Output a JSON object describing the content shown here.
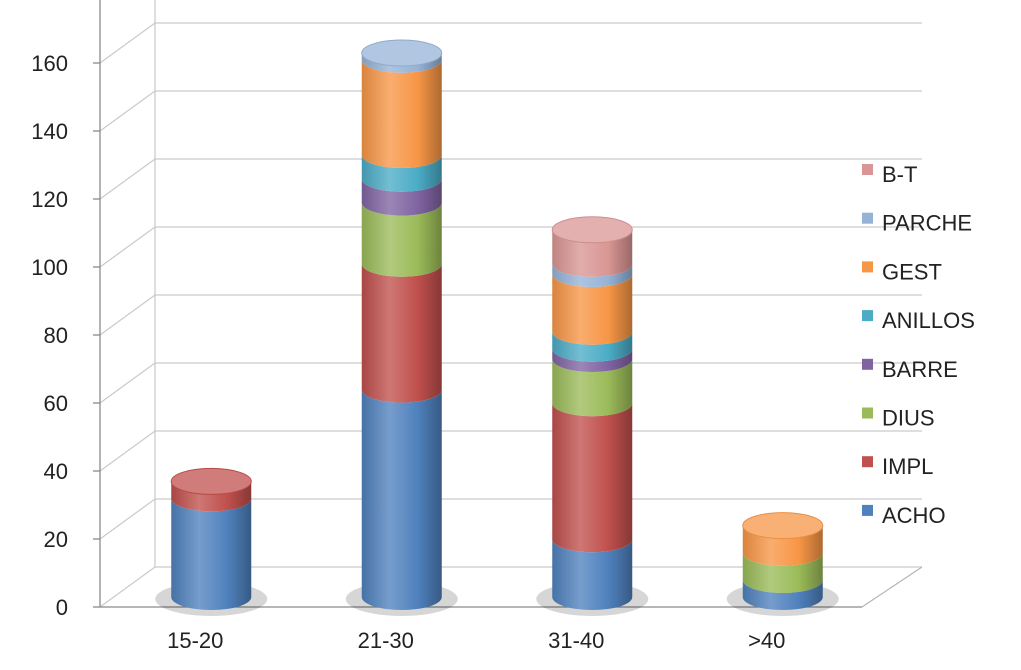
{
  "chart_data": {
    "type": "bar",
    "stacked": true,
    "style": "3d-cylinder",
    "categories": [
      "15-20",
      "21-30",
      "31-40",
      ">40"
    ],
    "series": [
      {
        "name": "ACHO",
        "color": "#4f81bd",
        "values": [
          29,
          61,
          17,
          5
        ]
      },
      {
        "name": "IMPL",
        "color": "#c0504d",
        "values": [
          5,
          37,
          40,
          0
        ]
      },
      {
        "name": "DIUS",
        "color": "#9bbb59",
        "values": [
          0,
          18,
          13,
          8
        ]
      },
      {
        "name": "BARRE",
        "color": "#8064a2",
        "values": [
          0,
          7,
          3,
          0
        ]
      },
      {
        "name": "ANILLOS",
        "color": "#4bacc6",
        "values": [
          0,
          7,
          5,
          0
        ]
      },
      {
        "name": "GEST",
        "color": "#f79646",
        "values": [
          0,
          28,
          17,
          8
        ]
      },
      {
        "name": "PARCHE",
        "color": "#95b3d7",
        "values": [
          0,
          2,
          3,
          0
        ]
      },
      {
        "name": "B-T",
        "color": "#d99694",
        "values": [
          0,
          0,
          10,
          0
        ]
      }
    ],
    "y_ticks": [
      0,
      20,
      40,
      60,
      80,
      100,
      120,
      140,
      160
    ],
    "ylim": [
      0,
      180
    ],
    "grid": true,
    "legend_position": "right"
  }
}
